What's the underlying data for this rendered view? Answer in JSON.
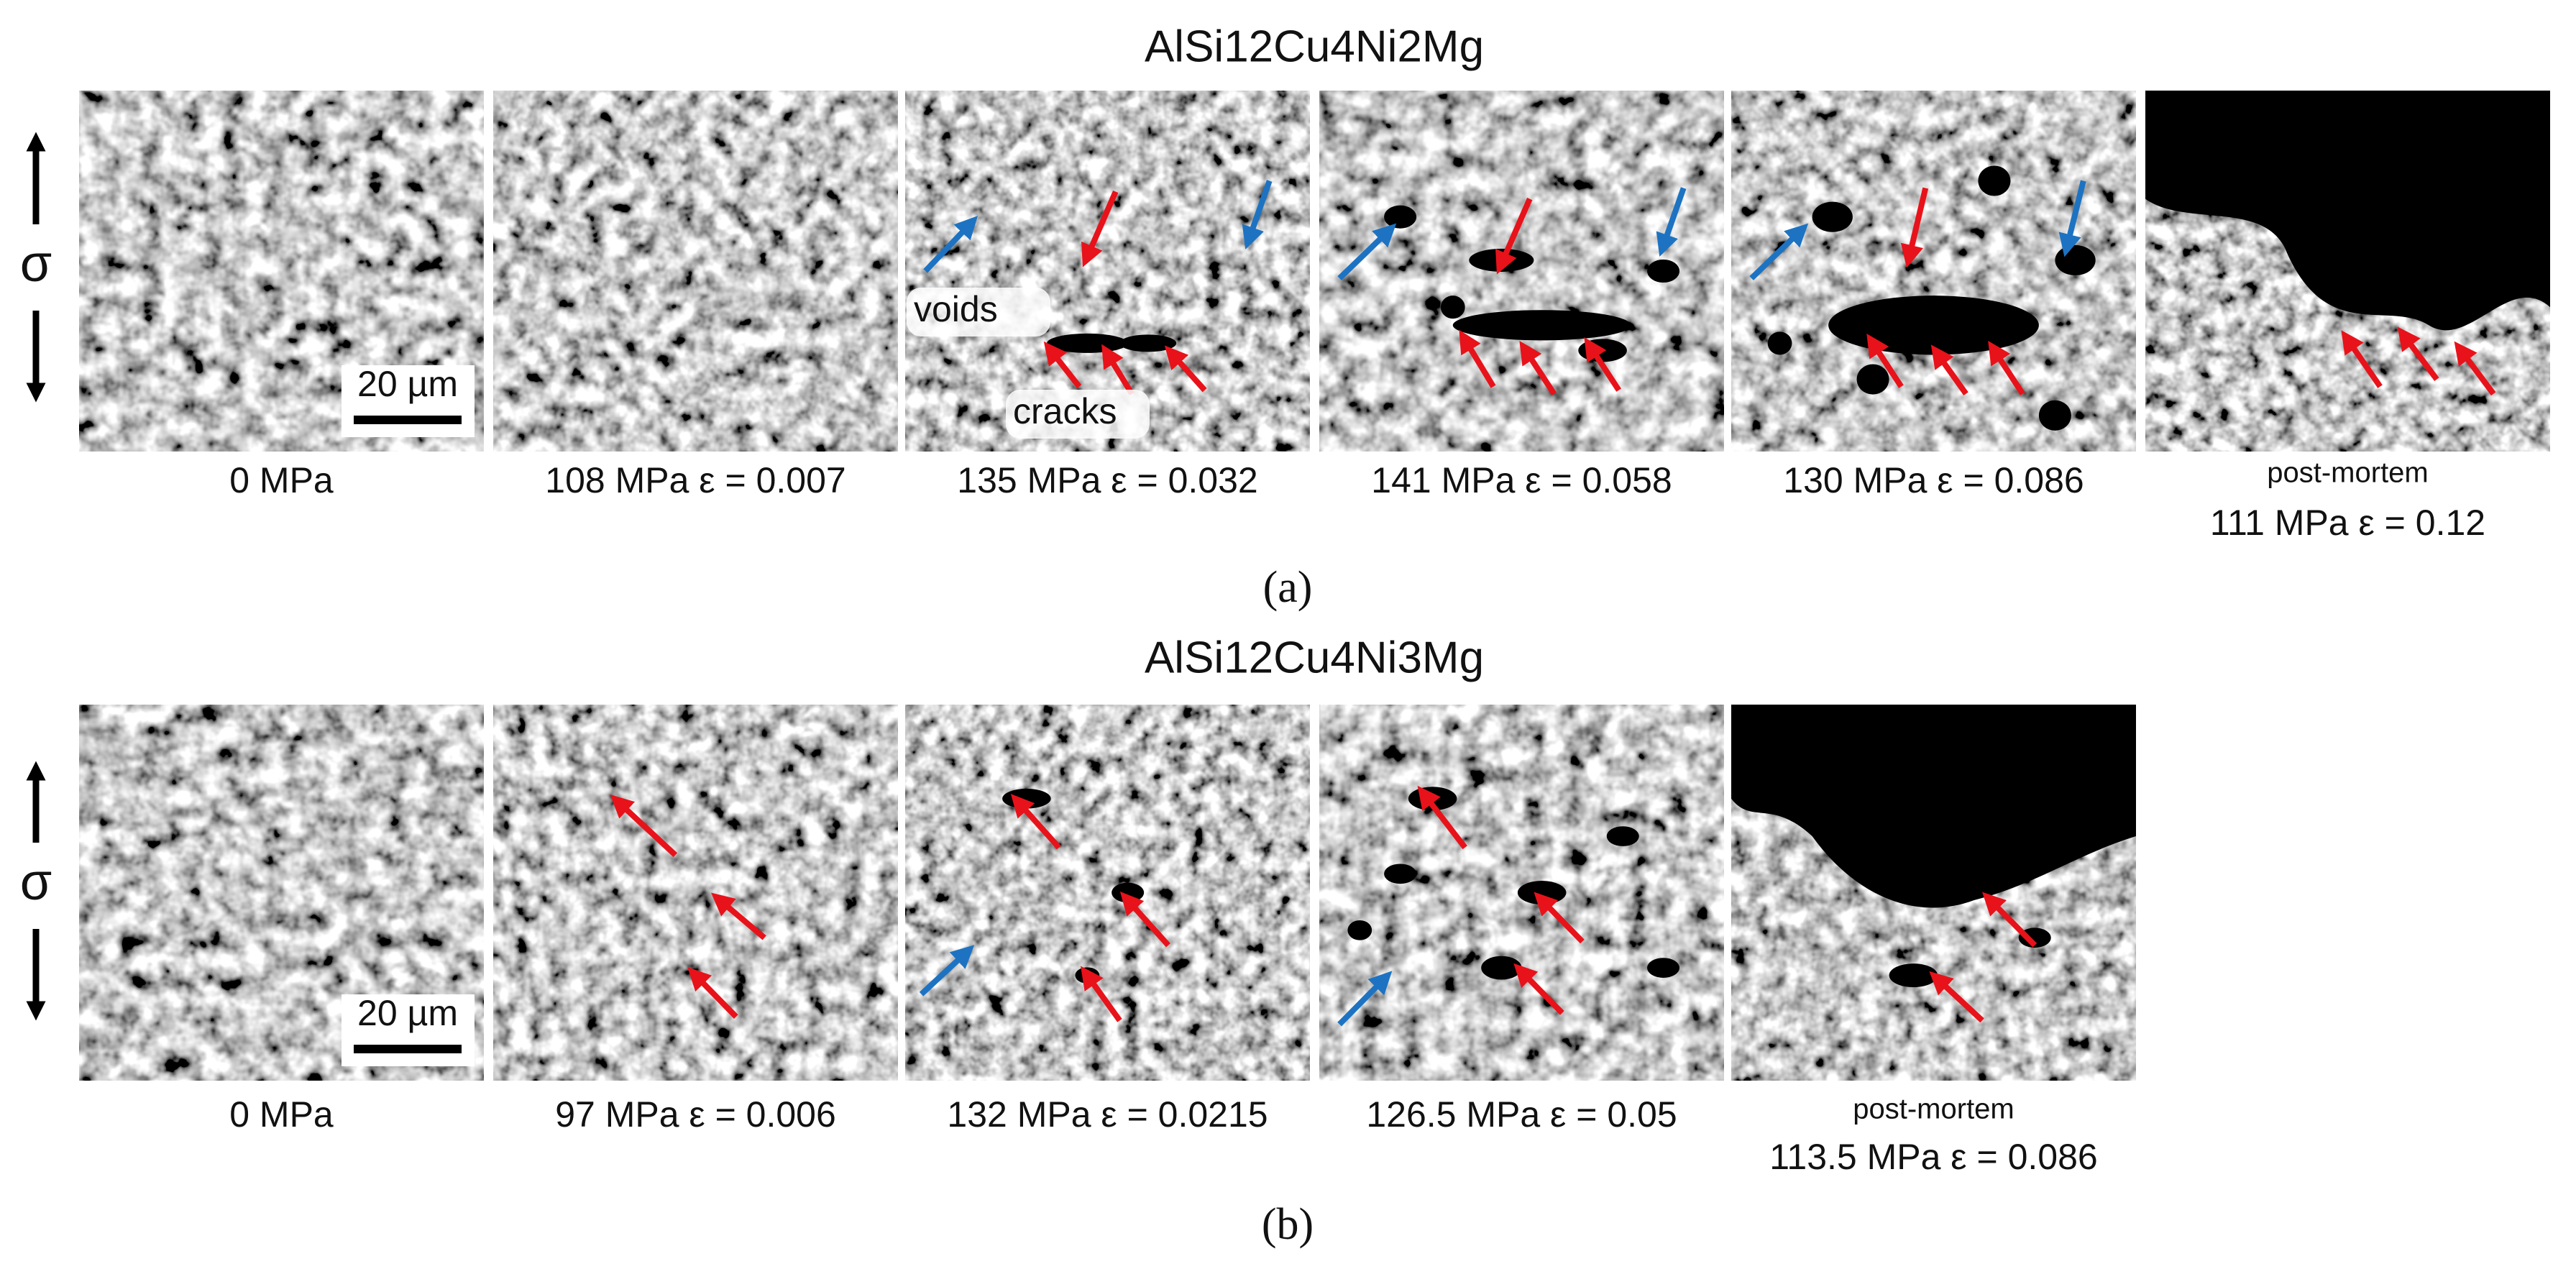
{
  "panels": [
    {
      "title": "AlSi12Cu4Ni2Mg",
      "stress_symbol": "σ",
      "label": "(a)",
      "images": [
        {
          "caption": "0 MPa",
          "scale_bar": "20 µm"
        },
        {
          "caption": "108 MPa ε = 0.007"
        },
        {
          "caption": "135 MPa ε = 0.032",
          "annotations": [
            "voids",
            "cracks"
          ]
        },
        {
          "caption": "141 MPa ε = 0.058"
        },
        {
          "caption": "130 MPa ε = 0.086"
        },
        {
          "note": "post-mortem",
          "caption": "111 MPa ε = 0.12"
        }
      ]
    },
    {
      "title": "AlSi12Cu4Ni3Mg",
      "stress_symbol": "σ",
      "label": "(b)",
      "images": [
        {
          "caption": "0 MPa",
          "scale_bar": "20 µm"
        },
        {
          "caption": "97 MPa ε = 0.006"
        },
        {
          "caption": "132 MPa ε = 0.0215"
        },
        {
          "caption": "126.5 MPa ε = 0.05"
        },
        {
          "note": "post-mortem",
          "caption": "113.5 MPa ε = 0.086"
        }
      ]
    }
  ]
}
